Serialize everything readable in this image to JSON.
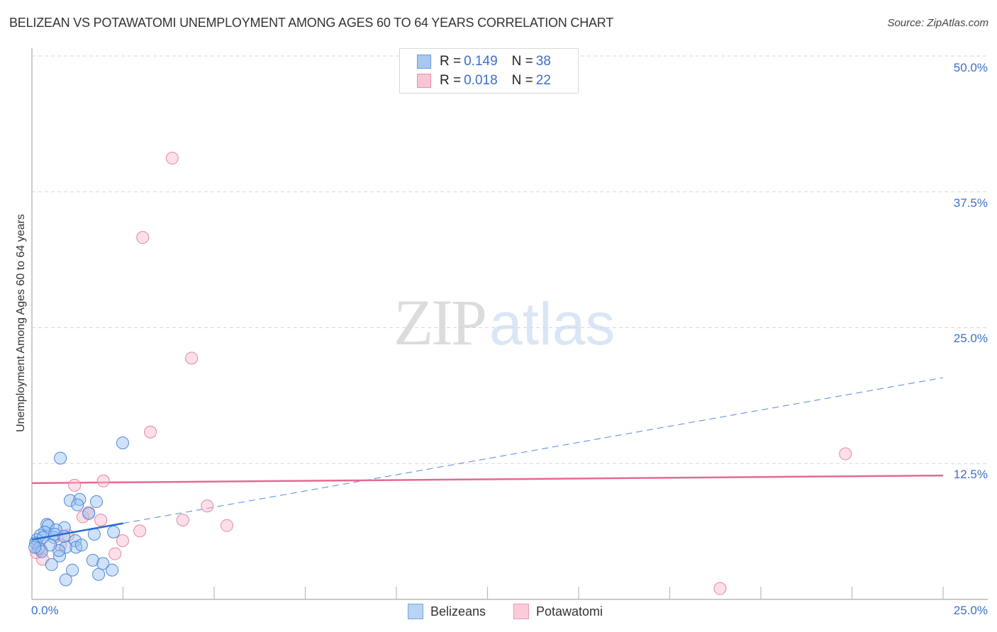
{
  "header": {
    "title": "BELIZEAN VS POTAWATOMI UNEMPLOYMENT AMONG AGES 60 TO 64 YEARS CORRELATION CHART",
    "source": "Source: ZipAtlas.com"
  },
  "watermark": {
    "zip": "ZIP",
    "atlas": "atlas"
  },
  "legend_top": {
    "rows": [
      {
        "r_label": "R = ",
        "r_value": "0.149",
        "n_label": "N = ",
        "n_value": "38",
        "color": "#a9c8f0",
        "border": "#6a9ad8"
      },
      {
        "r_label": "R = ",
        "r_value": "0.018",
        "n_label": "N = ",
        "n_value": "22",
        "color": "#f9c5d5",
        "border": "#e58fac"
      }
    ]
  },
  "legend_bottom": {
    "items": [
      {
        "label": "Belizeans",
        "color": "#b8d3f3",
        "border": "#7aa6dd"
      },
      {
        "label": "Potawatomi",
        "color": "#fbcbd9",
        "border": "#e99ab4"
      }
    ]
  },
  "axes": {
    "y_label": "Unemployment Among Ages 60 to 64 years",
    "y_ticks": [
      "50.0%",
      "37.5%",
      "25.0%",
      "12.5%"
    ],
    "x_ticks": [
      "0.0%",
      "25.0%"
    ]
  },
  "colors": {
    "blue_fill": "rgba(150,190,240,0.45)",
    "blue_stroke": "#4f88d6",
    "pink_fill": "rgba(248,185,205,0.45)",
    "pink_stroke": "#e5879f",
    "blue_line": "#2a6dd3",
    "pink_line": "#e56a92",
    "tick_text": "#3a6fc9"
  },
  "chart_data": {
    "type": "scatter",
    "title": "BELIZEAN VS POTAWATOMI UNEMPLOYMENT AMONG AGES 60 TO 64 YEARS CORRELATION CHART",
    "xlabel": "",
    "ylabel": "Unemployment Among Ages 60 to 64 years",
    "xlim": [
      0,
      25
    ],
    "ylim": [
      0,
      50
    ],
    "x_ticks": [
      0,
      25
    ],
    "y_ticks": [
      12.5,
      25,
      37.5,
      50
    ],
    "grid": "horizontal dashed",
    "legend_position": "top-center and bottom",
    "series": [
      {
        "name": "Belizeans",
        "R": 0.149,
        "N": 38,
        "points": [
          [
            0.78,
            13.0
          ],
          [
            2.49,
            14.4
          ],
          [
            1.05,
            9.1
          ],
          [
            1.31,
            9.2
          ],
          [
            1.25,
            8.7
          ],
          [
            1.77,
            9.0
          ],
          [
            1.56,
            7.9
          ],
          [
            0.41,
            6.9
          ],
          [
            0.45,
            6.8
          ],
          [
            0.89,
            6.6
          ],
          [
            0.66,
            6.4
          ],
          [
            0.35,
            6.2
          ],
          [
            0.23,
            5.9
          ],
          [
            0.14,
            5.5
          ],
          [
            0.1,
            5.2
          ],
          [
            0.19,
            4.7
          ],
          [
            0.27,
            4.4
          ],
          [
            0.08,
            4.8
          ],
          [
            0.6,
            5.7
          ],
          [
            0.62,
            6.0
          ],
          [
            0.31,
            5.7
          ],
          [
            1.71,
            6.0
          ],
          [
            2.24,
            6.2
          ],
          [
            1.19,
            5.4
          ],
          [
            1.21,
            4.8
          ],
          [
            0.93,
            4.8
          ],
          [
            1.36,
            5.0
          ],
          [
            0.76,
            4.0
          ],
          [
            0.74,
            4.5
          ],
          [
            0.54,
            3.2
          ],
          [
            1.11,
            2.7
          ],
          [
            0.93,
            1.8
          ],
          [
            1.67,
            3.6
          ],
          [
            1.95,
            3.3
          ],
          [
            1.83,
            2.3
          ],
          [
            2.2,
            2.7
          ],
          [
            0.51,
            5.0
          ],
          [
            0.88,
            5.8
          ]
        ],
        "trend": {
          "x": [
            0,
            2.5
          ],
          "y": [
            5.5,
            7.0
          ],
          "extended_dashed_to": [
            25,
            20.4
          ]
        }
      },
      {
        "name": "Potawatomi",
        "R": 0.018,
        "N": 22,
        "points": [
          [
            3.85,
            40.6
          ],
          [
            3.04,
            33.3
          ],
          [
            4.38,
            22.2
          ],
          [
            3.25,
            15.4
          ],
          [
            22.32,
            13.4
          ],
          [
            1.96,
            10.9
          ],
          [
            1.17,
            10.5
          ],
          [
            1.4,
            7.6
          ],
          [
            1.56,
            8.0
          ],
          [
            1.89,
            7.3
          ],
          [
            4.14,
            7.3
          ],
          [
            4.81,
            8.6
          ],
          [
            5.35,
            6.8
          ],
          [
            2.96,
            6.3
          ],
          [
            2.49,
            5.4
          ],
          [
            0.99,
            5.9
          ],
          [
            2.28,
            4.2
          ],
          [
            0.29,
            3.7
          ],
          [
            0.12,
            4.3
          ],
          [
            0.25,
            4.6
          ],
          [
            0.78,
            5.0
          ],
          [
            18.88,
            1.0
          ]
        ],
        "trend": {
          "x": [
            0,
            25
          ],
          "y": [
            10.7,
            11.4
          ]
        }
      }
    ]
  }
}
